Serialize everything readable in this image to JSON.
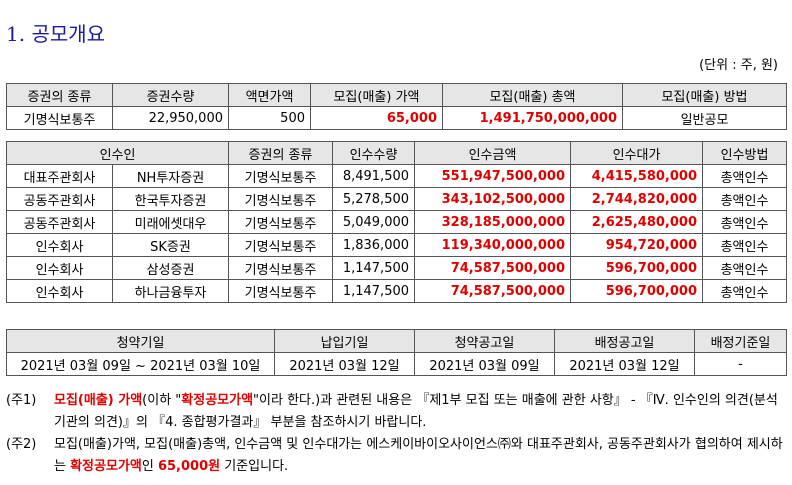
{
  "title": "1. 공모개요",
  "unit": "(단위 : 주, 원)",
  "table1": {
    "headers": [
      "증권의 종류",
      "증권수량",
      "액면가액",
      "모집(매출) 가액",
      "모집(매출) 총액",
      "모집(매출) 방법"
    ],
    "row": [
      "기명식보통주",
      "22,950,000",
      "500",
      "65,000",
      "1,491,750,000,000",
      "일반공모"
    ]
  },
  "table2": {
    "headers": [
      "인수인",
      "증권의 종류",
      "인수수량",
      "인수금액",
      "인수대가",
      "인수방법"
    ],
    "rows": [
      [
        "대표주관회사",
        "NH투자증권",
        "기명식보통주",
        "8,491,500",
        "551,947,500,000",
        "4,415,580,000",
        "총액인수"
      ],
      [
        "공동주관회사",
        "한국투자증권",
        "기명식보통주",
        "5,278,500",
        "343,102,500,000",
        "2,744,820,000",
        "총액인수"
      ],
      [
        "공동주관회사",
        "미래에셋대우",
        "기명식보통주",
        "5,049,000",
        "328,185,000,000",
        "2,625,480,000",
        "총액인수"
      ],
      [
        "인수회사",
        "SK증권",
        "기명식보통주",
        "1,836,000",
        "119,340,000,000",
        "954,720,000",
        "총액인수"
      ],
      [
        "인수회사",
        "삼성증권",
        "기명식보통주",
        "1,147,500",
        "74,587,500,000",
        "596,700,000",
        "총액인수"
      ],
      [
        "인수회사",
        "하나금융투자",
        "기명식보통주",
        "1,147,500",
        "74,587,500,000",
        "596,700,000",
        "총액인수"
      ]
    ]
  },
  "table3": {
    "headers": [
      "청약기일",
      "납입기일",
      "청약공고일",
      "배정공고일",
      "배정기준일"
    ],
    "row": [
      "2021년 03월 09일 ~ 2021년 03월 10일",
      "2021년 03월 12일",
      "2021년 03월 09일",
      "2021년 03월 12일",
      "-"
    ]
  },
  "notes": {
    "n1_tag": "(주1)",
    "n1_a": "모집(매출) 가액",
    "n1_b": "(이하 \"",
    "n1_c": "확정공모가액",
    "n1_d": "\"이라 한다.)과 관련된 내용은 『제1부 모집 또는 매출에 관한 사항』 - 『Ⅳ. 인수인의 의견(분석기관의 의견)』의 『4. 종합평가결과』 부분을 참조하시기 바랍니다.",
    "n2_tag": "(주2)",
    "n2_a": "모집(매출)가액, 모집(매출)총액, 인수금액 및 인수대가는 에스케이바이오사이언스㈜와 대표주관회사, 공동주관회사가 협의하여 제시하는 ",
    "n2_b": "확정공모가액",
    "n2_c": "인 ",
    "n2_d": "65,000원",
    "n2_e": " 기준입니다."
  }
}
